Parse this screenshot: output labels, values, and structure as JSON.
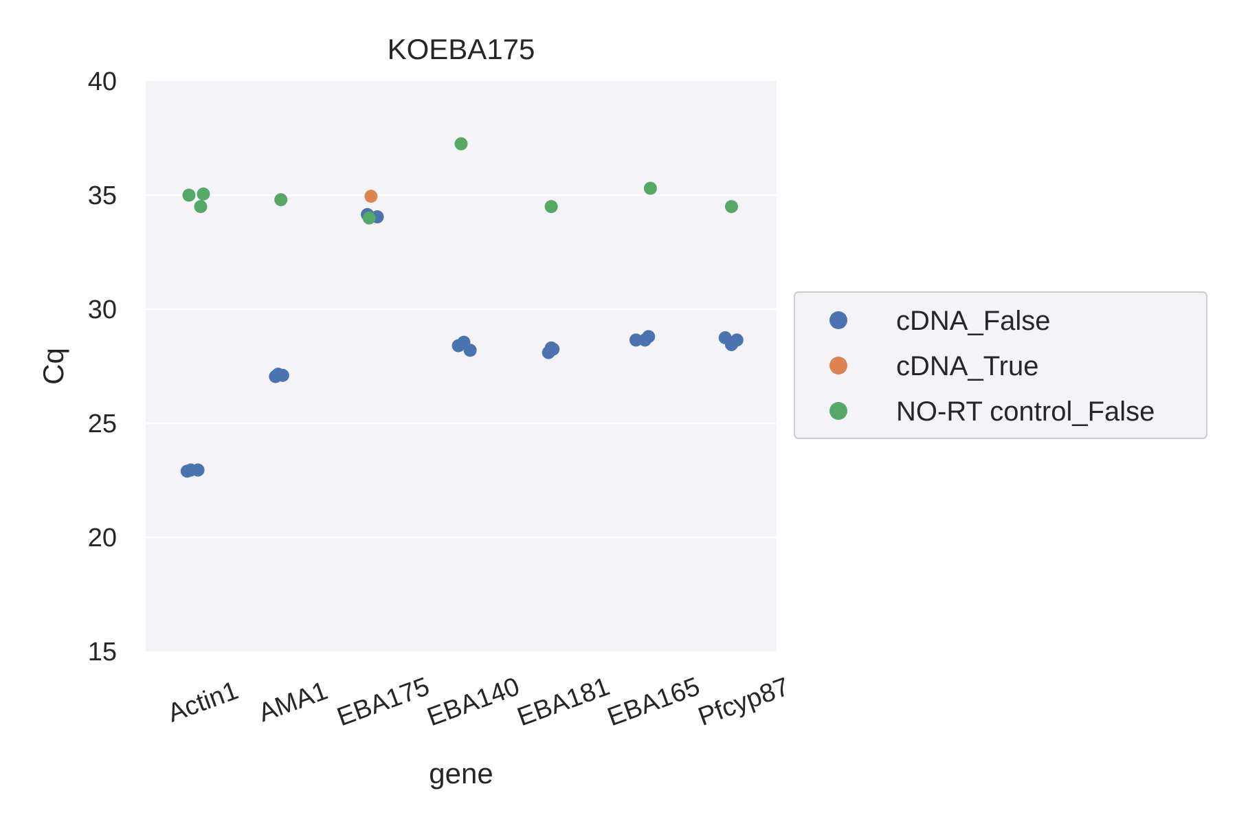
{
  "chart_data": {
    "type": "scatter",
    "title": "KOEBA175",
    "xlabel": "gene",
    "ylabel": "Cq",
    "categories": [
      "Actin1",
      "AMA1",
      "EBA175",
      "EBA140",
      "EBA181",
      "EBA165",
      "Pfcyp87"
    ],
    "ylim": [
      15,
      40
    ],
    "yticks": [
      15,
      20,
      25,
      30,
      35,
      40
    ],
    "grid": true,
    "legend_position": "right",
    "series": [
      {
        "name": "cDNA_False",
        "color": "#4c72b0",
        "points": [
          {
            "category": "Actin1",
            "offset": -0.04,
            "y": 22.9
          },
          {
            "category": "Actin1",
            "offset": 0.0,
            "y": 22.95
          },
          {
            "category": "Actin1",
            "offset": 0.08,
            "y": 22.95
          },
          {
            "category": "AMA1",
            "offset": -0.06,
            "y": 27.05
          },
          {
            "category": "AMA1",
            "offset": -0.03,
            "y": 27.15
          },
          {
            "category": "AMA1",
            "offset": 0.02,
            "y": 27.1
          },
          {
            "category": "EBA175",
            "offset": -0.04,
            "y": 34.15
          },
          {
            "category": "EBA175",
            "offset": 0.07,
            "y": 34.05
          },
          {
            "category": "EBA140",
            "offset": -0.03,
            "y": 28.4
          },
          {
            "category": "EBA140",
            "offset": 0.03,
            "y": 28.55
          },
          {
            "category": "EBA140",
            "offset": 0.1,
            "y": 28.2
          },
          {
            "category": "EBA181",
            "offset": -0.03,
            "y": 28.1
          },
          {
            "category": "EBA181",
            "offset": 0.0,
            "y": 28.3
          },
          {
            "category": "EBA181",
            "offset": 0.02,
            "y": 28.25
          },
          {
            "category": "EBA165",
            "offset": -0.06,
            "y": 28.65
          },
          {
            "category": "EBA165",
            "offset": 0.04,
            "y": 28.65
          },
          {
            "category": "EBA165",
            "offset": 0.08,
            "y": 28.8
          },
          {
            "category": "Pfcyp87",
            "offset": -0.07,
            "y": 28.75
          },
          {
            "category": "Pfcyp87",
            "offset": 0.0,
            "y": 28.45
          },
          {
            "category": "Pfcyp87",
            "offset": 0.06,
            "y": 28.65
          }
        ]
      },
      {
        "name": "cDNA_True",
        "color": "#dd8452",
        "points": [
          {
            "category": "EBA175",
            "offset": 0.0,
            "y": 34.95
          }
        ]
      },
      {
        "name": "NO-RT control_False",
        "color": "#55a868",
        "points": [
          {
            "category": "Actin1",
            "offset": -0.02,
            "y": 35.0
          },
          {
            "category": "Actin1",
            "offset": 0.11,
            "y": 34.5
          },
          {
            "category": "Actin1",
            "offset": 0.14,
            "y": 35.05
          },
          {
            "category": "AMA1",
            "offset": 0.0,
            "y": 34.8
          },
          {
            "category": "EBA175",
            "offset": -0.02,
            "y": 34.0
          },
          {
            "category": "EBA140",
            "offset": 0.0,
            "y": 37.25
          },
          {
            "category": "EBA181",
            "offset": 0.0,
            "y": 34.5
          },
          {
            "category": "EBA165",
            "offset": 0.1,
            "y": 35.3
          },
          {
            "category": "Pfcyp87",
            "offset": 0.0,
            "y": 34.5
          }
        ]
      }
    ]
  }
}
